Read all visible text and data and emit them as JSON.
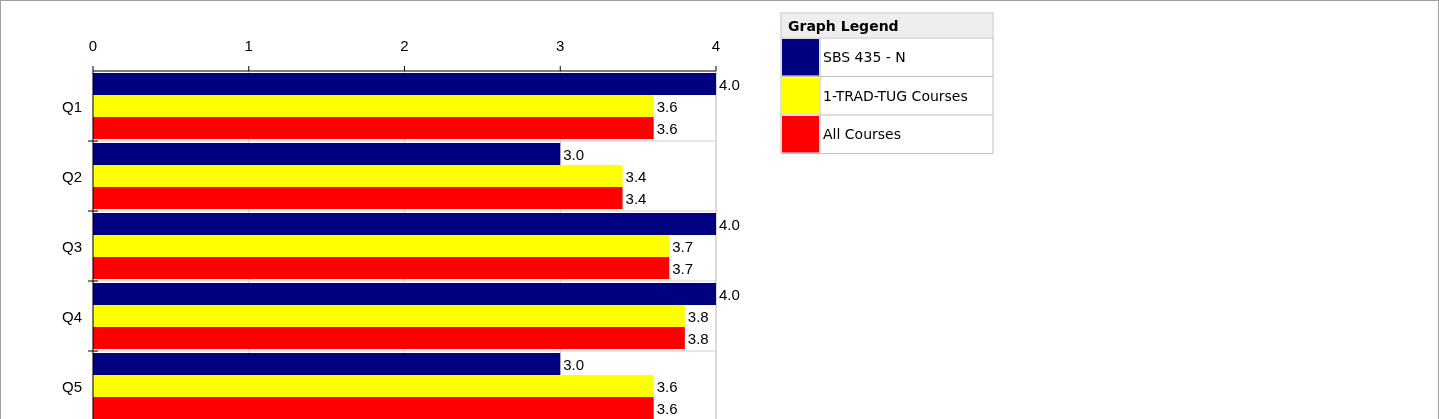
{
  "chart_data": {
    "type": "bar",
    "orientation": "horizontal",
    "legend_title": "Graph Legend",
    "categories": [
      "Q1",
      "Q2",
      "Q3",
      "Q4",
      "Q5"
    ],
    "series": [
      {
        "name": "SBS 435 - N",
        "color": "#000080",
        "values": [
          4.0,
          3.0,
          4.0,
          4.0,
          3.0
        ],
        "value_labels": [
          "4.0",
          "3.0",
          "4.0",
          "4.0",
          "3.0"
        ]
      },
      {
        "name": "1-TRAD-TUG Courses",
        "color": "#ffff00",
        "values": [
          3.6,
          3.4,
          3.7,
          3.8,
          3.6
        ],
        "value_labels": [
          "3.6",
          "3.4",
          "3.7",
          "3.8",
          "3.6"
        ]
      },
      {
        "name": "All Courses",
        "color": "#ff0000",
        "values": [
          3.6,
          3.4,
          3.7,
          3.8,
          3.6
        ],
        "value_labels": [
          "3.6",
          "3.4",
          "3.7",
          "3.8",
          "3.6"
        ]
      }
    ],
    "xlim": [
      0,
      4
    ],
    "xticks": [
      0,
      1,
      2,
      3,
      4
    ],
    "grid": "x",
    "legend": "top right"
  }
}
